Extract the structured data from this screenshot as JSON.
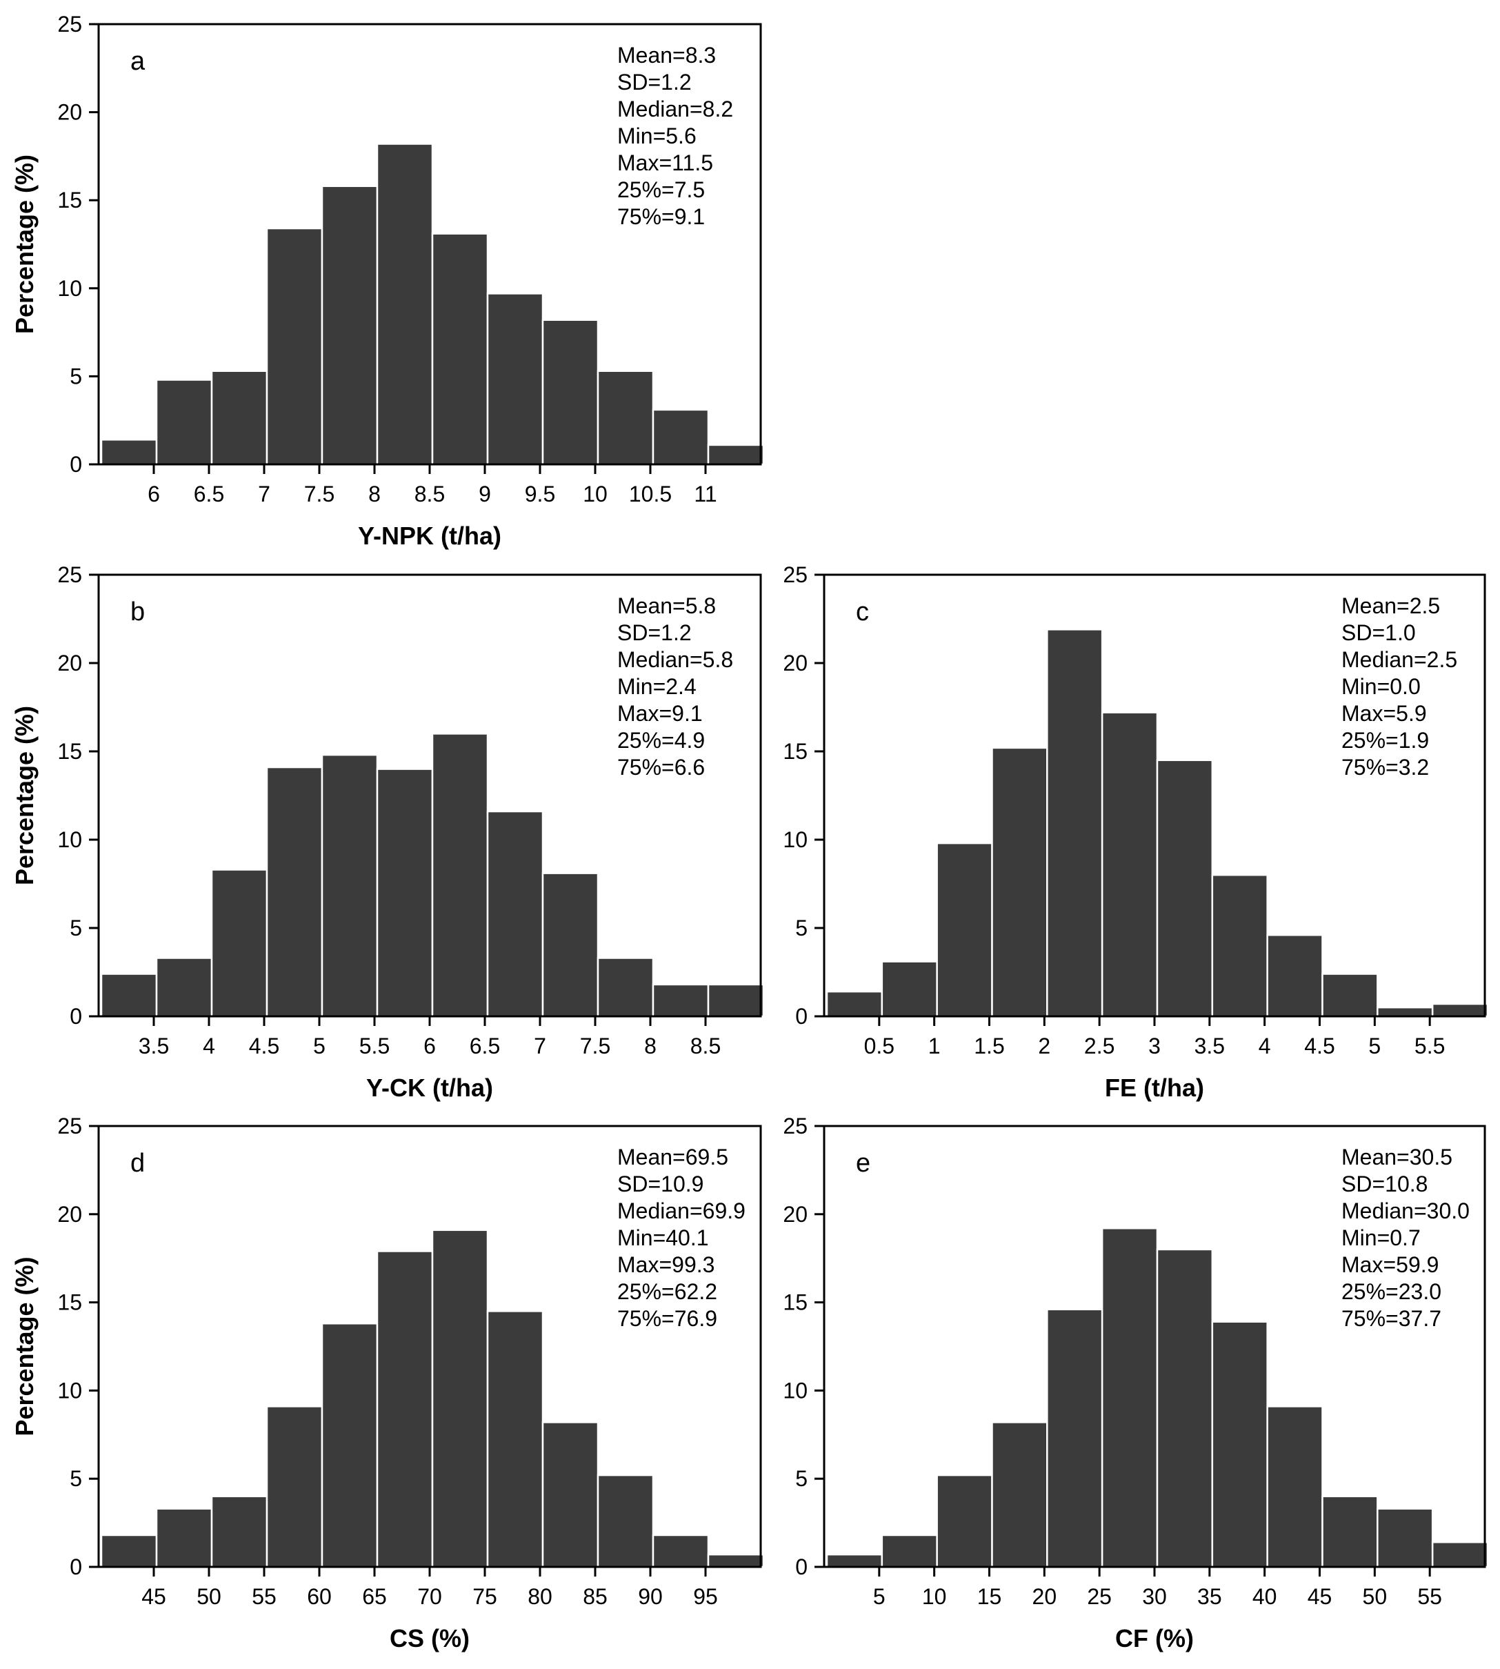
{
  "chart_data": [
    {
      "id": "a",
      "type": "bar",
      "panel_label": "a",
      "xlabel": "Y-NPK (t/ha)",
      "ylabel": "Percentage (%)",
      "xlim": [
        5.5,
        11.5
      ],
      "ylim": [
        0,
        25
      ],
      "bin_width": 0.5,
      "bin_start": 5.5,
      "values": [
        1.4,
        4.8,
        5.3,
        13.4,
        15.8,
        18.2,
        13.1,
        9.7,
        8.2,
        5.3,
        3.1,
        1.1
      ],
      "xticks": [
        6,
        6.5,
        7,
        7.5,
        8,
        8.5,
        9,
        9.5,
        10,
        10.5,
        11
      ],
      "xtick_labels": [
        "6",
        "6.5",
        "7",
        "7.5",
        "8",
        "8.5",
        "9",
        "9.5",
        "10",
        "10.5",
        "11"
      ],
      "yticks": [
        0,
        5,
        10,
        15,
        20,
        25
      ],
      "ytick_labels": [
        "0",
        "5",
        "10",
        "15",
        "20",
        "25"
      ],
      "stats": [
        "Mean=8.3",
        "SD=1.2",
        "Median=8.2",
        "Min=5.6",
        "Max=11.5",
        "25%=7.5",
        "75%=9.1"
      ]
    },
    {
      "id": "b",
      "type": "bar",
      "panel_label": "b",
      "xlabel": "Y-CK (t/ha)",
      "ylabel": "Percentage (%)",
      "xlim": [
        3.0,
        9.0
      ],
      "ylim": [
        0,
        25
      ],
      "bin_width": 0.5,
      "bin_start": 3.0,
      "values": [
        2.4,
        3.3,
        8.3,
        14.1,
        14.8,
        14.0,
        16.0,
        11.6,
        8.1,
        3.3,
        1.8,
        1.8
      ],
      "xticks": [
        3.5,
        4,
        4.5,
        5,
        5.5,
        6,
        6.5,
        7,
        7.5,
        8,
        8.5
      ],
      "xtick_labels": [
        "3.5",
        "4",
        "4.5",
        "5",
        "5.5",
        "6",
        "6.5",
        "7",
        "7.5",
        "8",
        "8.5"
      ],
      "yticks": [
        0,
        5,
        10,
        15,
        20,
        25
      ],
      "ytick_labels": [
        "0",
        "5",
        "10",
        "15",
        "20",
        "25"
      ],
      "stats": [
        "Mean=5.8",
        "SD=1.2",
        "Median=5.8",
        "Min=2.4",
        "Max=9.1",
        "25%=4.9",
        "75%=6.6"
      ]
    },
    {
      "id": "c",
      "type": "bar",
      "panel_label": "c",
      "xlabel": "FE (t/ha)",
      "ylabel": "",
      "xlim": [
        0.0,
        6.0
      ],
      "ylim": [
        0,
        25
      ],
      "bin_width": 0.5,
      "bin_start": 0.0,
      "values": [
        1.4,
        3.1,
        9.8,
        15.2,
        21.9,
        17.2,
        14.5,
        8.0,
        4.6,
        2.4,
        0.5,
        0.7
      ],
      "xticks": [
        0.5,
        1,
        1.5,
        2,
        2.5,
        3,
        3.5,
        4,
        4.5,
        5,
        5.5
      ],
      "xtick_labels": [
        "0.5",
        "1",
        "1.5",
        "2",
        "2.5",
        "3",
        "3.5",
        "4",
        "4.5",
        "5",
        "5.5"
      ],
      "yticks": [
        0,
        5,
        10,
        15,
        20,
        25
      ],
      "ytick_labels": [
        "0",
        "5",
        "10",
        "15",
        "20",
        "25"
      ],
      "stats": [
        "Mean=2.5",
        "SD=1.0",
        "Median=2.5",
        "Min=0.0",
        "Max=5.9",
        "25%=1.9",
        "75%=3.2"
      ]
    },
    {
      "id": "d",
      "type": "bar",
      "panel_label": "d",
      "xlabel": "CS (%)",
      "ylabel": "Percentage (%)",
      "xlim": [
        40,
        100
      ],
      "ylim": [
        0,
        25
      ],
      "bin_width": 5,
      "bin_start": 40,
      "values": [
        1.8,
        3.3,
        4.0,
        9.1,
        13.8,
        17.9,
        19.1,
        14.5,
        8.2,
        5.2,
        1.8,
        0.7
      ],
      "xticks": [
        45,
        50,
        55,
        60,
        65,
        70,
        75,
        80,
        85,
        90,
        95
      ],
      "xtick_labels": [
        "45",
        "50",
        "55",
        "60",
        "65",
        "70",
        "75",
        "80",
        "85",
        "90",
        "95"
      ],
      "yticks": [
        0,
        5,
        10,
        15,
        20,
        25
      ],
      "ytick_labels": [
        "0",
        "5",
        "10",
        "15",
        "20",
        "25"
      ],
      "stats": [
        "Mean=69.5",
        "SD=10.9",
        "Median=69.9",
        "Min=40.1",
        "Max=99.3",
        "25%=62.2",
        "75%=76.9"
      ]
    },
    {
      "id": "e",
      "type": "bar",
      "panel_label": "e",
      "xlabel": "CF (%)",
      "ylabel": "",
      "xlim": [
        0,
        60
      ],
      "ylim": [
        0,
        25
      ],
      "bin_width": 5,
      "bin_start": 0,
      "values": [
        0.7,
        1.8,
        5.2,
        8.2,
        14.6,
        19.2,
        18.0,
        13.9,
        9.1,
        4.0,
        3.3,
        1.4
      ],
      "xticks": [
        5,
        10,
        15,
        20,
        25,
        30,
        35,
        40,
        45,
        50,
        55
      ],
      "xtick_labels": [
        "5",
        "10",
        "15",
        "20",
        "25",
        "30",
        "35",
        "40",
        "45",
        "50",
        "55"
      ],
      "yticks": [
        0,
        5,
        10,
        15,
        20,
        25
      ],
      "ytick_labels": [
        "0",
        "5",
        "10",
        "15",
        "20",
        "25"
      ],
      "stats": [
        "Mean=30.5",
        "SD=10.8",
        "Median=30.0",
        "Min=0.7",
        "Max=59.9",
        "25%=23.0",
        "75%=37.7"
      ]
    }
  ]
}
